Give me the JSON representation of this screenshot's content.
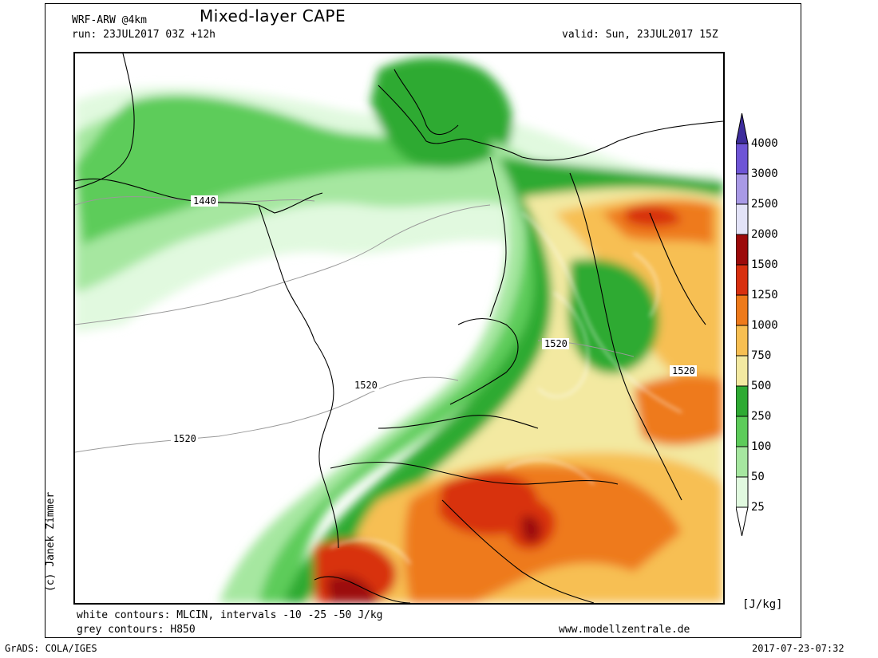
{
  "header": {
    "model": "WRF-ARW @4km",
    "title": "Mixed-layer CAPE",
    "run": "run: 23JUL2017 03Z +12h",
    "valid": "valid: Sun, 23JUL2017 15Z"
  },
  "map": {
    "contour_labels": [
      "1440",
      "1520",
      "1520",
      "1520",
      "1520"
    ],
    "colors": {
      "c25": "#e1f9df",
      "c50": "#a6e7a0",
      "c100": "#5dcc5a",
      "c250": "#2eaa33",
      "c500": "#f3e9a1",
      "c750": "#f7bf52",
      "c1000": "#ee7a1a",
      "c1250": "#d8300f",
      "c1500": "#9c0a0a",
      "c2000": "#e3e3f7",
      "c2500": "#a99ae6",
      "c3000": "#6e55d6",
      "c4000": "#3d2c9c",
      "border": "#000000",
      "grey_contour": "#9a9a9a",
      "white_contour": "#ffffff"
    }
  },
  "colorbar": {
    "unit": "[J/kg]",
    "levels": [
      "4000",
      "3000",
      "2500",
      "2000",
      "1500",
      "1250",
      "1000",
      "750",
      "500",
      "250",
      "100",
      "50",
      "25"
    ],
    "colors": [
      "#3d2c9c",
      "#6e55d6",
      "#a99ae6",
      "#e3e3f7",
      "#9c0a0a",
      "#d8300f",
      "#ee7a1a",
      "#f7bf52",
      "#f3e9a1",
      "#2eaa33",
      "#5dcc5a",
      "#a6e7a0",
      "#e1f9df"
    ]
  },
  "footer": {
    "white_contours": "white contours: MLCIN, intervals -10 -25 -50 J/kg",
    "grey_contours": "grey contours: H850",
    "website": "www.modellzentrale.de",
    "grads": "GrADS: COLA/IGES",
    "timestamp": "2017-07-23-07:32",
    "credit": "(c) Janek Zimmer"
  }
}
